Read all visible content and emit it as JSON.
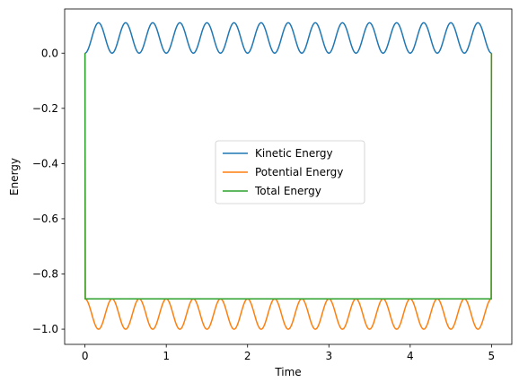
{
  "chart_data": {
    "type": "line",
    "xlabel": "Time",
    "ylabel": "Energy",
    "xlim": [
      -0.25,
      5.25
    ],
    "ylim": [
      -1.055,
      0.16
    ],
    "x_ticks": [
      0,
      1,
      2,
      3,
      4,
      5
    ],
    "x_tick_labels": [
      "0",
      "1",
      "2",
      "3",
      "4",
      "5"
    ],
    "y_ticks": [
      0.0,
      -0.2,
      -0.4,
      -0.6,
      -0.8,
      -1.0
    ],
    "y_tick_labels": [
      "0.0",
      "−0.2",
      "−0.4",
      "−0.6",
      "−0.8",
      "−1.0"
    ],
    "grid": false,
    "legend_position": "center",
    "time_span": [
      0,
      5
    ],
    "series": [
      {
        "name": "Kinetic Energy",
        "color": "#1f77b4",
        "description": "oscillates between 0.0 and 0.11, about 15 peaks over t=0..5; equals 0 at t=0",
        "min": 0.0,
        "max": 0.11,
        "peaks": 15
      },
      {
        "name": "Potential Energy",
        "color": "#ff7f0e",
        "description": "oscillates between -1.0 and -0.89; jumps from 0 at t=0 and returns to 0 at t=5",
        "min": -1.0,
        "max": -0.89,
        "peaks": 15
      },
      {
        "name": "Total Energy",
        "color": "#2ca02c",
        "description": "constant at -0.89 for t in (0,5); equals 0 at t=0 and t=5",
        "value": -0.89,
        "endpoints": 0.0
      }
    ]
  }
}
